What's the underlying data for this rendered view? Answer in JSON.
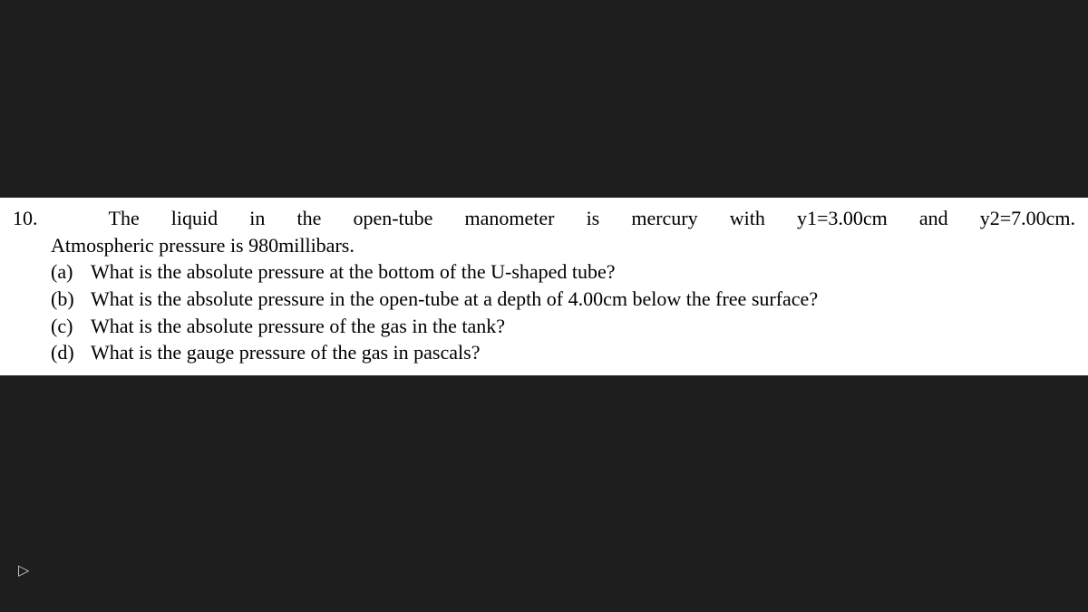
{
  "document": {
    "background_color": "#1e1e1e",
    "text_block_bg": "#ffffff",
    "text_color": "#000000",
    "font_family": "Times New Roman",
    "font_size_pt": 16
  },
  "problem": {
    "number": "10.",
    "intro_line1": "The liquid in the open-tube manometer is mercury with y1=3.00cm and y2=7.00cm.",
    "intro_line2": "Atmospheric pressure is 980millibars.",
    "parts": [
      {
        "label": "(a)",
        "text": "What is the absolute pressure at the bottom of the U-shaped tube?"
      },
      {
        "label": "(b)",
        "text": "What is the absolute pressure in the open-tube at a depth of 4.00cm below the free surface?"
      },
      {
        "label": "(c)",
        "text": "What is the absolute pressure of the gas in the tank?"
      },
      {
        "label": "(d)",
        "text": "What is the gauge pressure of the gas in pascals?"
      }
    ]
  },
  "controls": {
    "play_icon": "▷"
  }
}
